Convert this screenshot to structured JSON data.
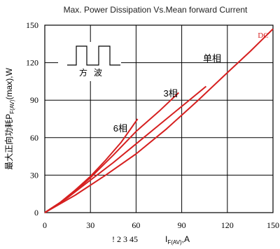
{
  "chart_data": {
    "type": "line",
    "title": "Max. Power Dissipation Vs.Mean forward Current",
    "ylabel_prefix": "最大正向功耗P",
    "ylabel_sub": "F(AV)",
    "ylabel_suffix": "(max),W",
    "xlabel_prefix": "I",
    "xlabel_sub": "F(AV)",
    "xlabel_suffix": ",A",
    "xlabel_garbled": "! 2 3 45",
    "xlim": [
      0,
      150
    ],
    "ylim": [
      0,
      150
    ],
    "x_ticks": [
      0,
      30,
      60,
      90,
      120,
      150
    ],
    "y_ticks": [
      0,
      30,
      60,
      90,
      120,
      150
    ],
    "x_tick_labels": [
      "0",
      "30",
      "60",
      "90",
      "120",
      "150"
    ],
    "y_tick_labels": [
      "0",
      "30",
      "60",
      "90",
      "120",
      "150"
    ],
    "grid": true,
    "line_color": "#d62020",
    "inset_label": "方   波",
    "series": [
      {
        "name": "6相",
        "label_at": [
          45,
          65
        ],
        "points": [
          [
            0,
            0
          ],
          [
            10,
            8
          ],
          [
            20,
            18
          ],
          [
            30,
            29
          ],
          [
            40,
            42
          ],
          [
            50,
            56
          ],
          [
            57,
            68
          ],
          [
            61,
            75
          ]
        ]
      },
      {
        "name": "3相",
        "label_at": [
          78,
          93
        ],
        "points": [
          [
            0,
            0
          ],
          [
            15,
            12
          ],
          [
            30,
            28
          ],
          [
            45,
            46
          ],
          [
            60,
            65
          ],
          [
            75,
            81
          ],
          [
            88,
            96
          ]
        ]
      },
      {
        "name": "单相",
        "label_at": [
          104,
          121
        ],
        "points": [
          [
            0,
            0
          ],
          [
            15,
            12
          ],
          [
            30,
            26
          ],
          [
            45,
            40
          ],
          [
            60,
            55
          ],
          [
            75,
            70
          ],
          [
            90,
            85
          ],
          [
            106,
            101
          ]
        ]
      },
      {
        "name": "DC",
        "label_at": [
          140,
          140
        ],
        "points": [
          [
            0,
            0
          ],
          [
            20,
            14
          ],
          [
            40,
            30
          ],
          [
            60,
            47
          ],
          [
            80,
            67
          ],
          [
            100,
            89
          ],
          [
            120,
            112
          ],
          [
            135,
            129
          ],
          [
            150,
            147
          ]
        ]
      }
    ]
  }
}
